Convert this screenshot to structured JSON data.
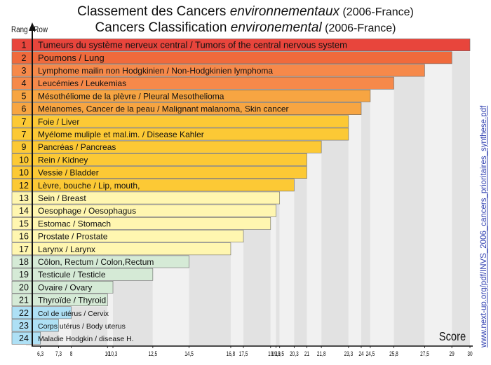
{
  "title_line1": {
    "prefix": "Classement des Cancers ",
    "emph": "environnementaux",
    "suffix": " (2006-France)"
  },
  "title_line2": {
    "prefix": "Cancers Classification ",
    "emph": "environemental",
    "suffix": " (2006-France)"
  },
  "side_link": "www.next-up.org/pdf/INVS_2006_cancers_prioritaires_synthese.pdf",
  "chart_data": {
    "type": "bar",
    "orientation": "horizontal",
    "ylabel": "Rang - Row",
    "xlabel": "Score",
    "xlim": [
      5.5,
      30
    ],
    "x_ticks": [
      "6,3",
      "7,3",
      "8",
      "10",
      "10,3",
      "12,5",
      "14,5",
      "16,8",
      "17,5",
      "19",
      "19,3",
      "19,5",
      "20,3",
      "21",
      "21,8",
      "23,3",
      "24",
      "24,5",
      "25,8",
      "27,5",
      "29",
      "30"
    ],
    "x_tick_values": [
      6.3,
      7.3,
      8,
      10,
      10.3,
      12.5,
      14.5,
      16.8,
      17.5,
      19,
      19.3,
      19.5,
      20.3,
      21,
      21.8,
      23.3,
      24,
      24.5,
      25.8,
      27.5,
      29,
      30
    ],
    "bars": [
      {
        "rank": "1",
        "label": "Tumeurs du système nerveux central / Tumors of the central nervous system",
        "value": 30,
        "color": "#e8453c"
      },
      {
        "rank": "2",
        "label": "Poumons / Lung",
        "value": 29,
        "color": "#f06a3c"
      },
      {
        "rank": "3",
        "label": "Lymphome mailin non Hodgkinien / Non-Hodgkinien lymphoma",
        "value": 27.5,
        "color": "#f6894a"
      },
      {
        "rank": "4",
        "label": "Leucémies / Leukemias",
        "value": 25.8,
        "color": "#f6894a"
      },
      {
        "rank": "5",
        "label": "Mésothéliome de la plèvre / Pleural Mesothelioma",
        "value": 24.5,
        "color": "#f7a542"
      },
      {
        "rank": "6",
        "label": "Mélanomes, Cancer de la peau / Malignant malanoma, Skin cancer",
        "value": 24,
        "color": "#f7a542"
      },
      {
        "rank": "7",
        "label": "Foie / Liver",
        "value": 23.3,
        "color": "#fcc935"
      },
      {
        "rank": "7",
        "label": "Myélome muliple et mal.im. / Disease Kahler",
        "value": 23.3,
        "color": "#fcc935"
      },
      {
        "rank": "9",
        "label": "Pancréas / Pancreas",
        "value": 21.8,
        "color": "#fcc935"
      },
      {
        "rank": "10",
        "label": "Rein / Kidney",
        "value": 21,
        "color": "#fcc935"
      },
      {
        "rank": "10",
        "label": "Vessie / Bladder",
        "value": 21,
        "color": "#fcc935"
      },
      {
        "rank": "12",
        "label": "Lèvre, bouche / Lip, mouth,",
        "value": 20.3,
        "color": "#fcc935"
      },
      {
        "rank": "13",
        "label": "Sein / Breast",
        "value": 19.5,
        "color": "#fff6b0"
      },
      {
        "rank": "14",
        "label": "Oesophage / Oesophagus",
        "value": 19.3,
        "color": "#fff6b0"
      },
      {
        "rank": "15",
        "label": "Estomac / Stomach",
        "value": 19,
        "color": "#fff6b0"
      },
      {
        "rank": "16",
        "label": "Prostate / Prostate",
        "value": 17.5,
        "color": "#fff6b0"
      },
      {
        "rank": "17",
        "label": "Larynx / Larynx",
        "value": 16.8,
        "color": "#fff6b0"
      },
      {
        "rank": "18",
        "label": "Côlon, Rectum / Colon,Rectum",
        "value": 14.5,
        "color": "#d5ead6"
      },
      {
        "rank": "19",
        "label": "Testicule / Testicle",
        "value": 12.5,
        "color": "#d5ead6"
      },
      {
        "rank": "20",
        "label": "Ovaire / Ovary",
        "value": 10.3,
        "color": "#d5ead6"
      },
      {
        "rank": "21",
        "label": "Thyroïde / Thyroid",
        "value": 10,
        "color": "#d5ead6"
      },
      {
        "rank": "22",
        "label": "Col de utérus / Cervix",
        "value": 8,
        "color": "#aee0f5"
      },
      {
        "rank": "23",
        "label": "Corps utérus / Body uterus",
        "value": 7.3,
        "color": "#aee0f5"
      },
      {
        "rank": "24",
        "label": "Maladie Hodgkin / disease H.",
        "value": 6.3,
        "color": "#aee0f5"
      }
    ]
  }
}
